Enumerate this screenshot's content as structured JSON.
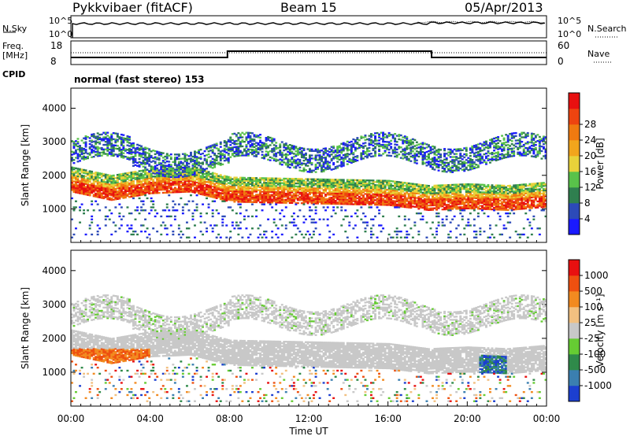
{
  "header": {
    "title": "Pykkvibaer (fitACF)",
    "beam": "Beam 15",
    "date": "05/Apr/2013"
  },
  "noise_panel": {
    "left_label": "N.Sky",
    "right_label": "N.Search",
    "ticks": [
      "10^5",
      "10^0"
    ]
  },
  "freq_panel": {
    "left_label": "Freq.",
    "left_unit": "[MHz]",
    "left_ticks": [
      "18",
      "8"
    ],
    "right_label": "Nave",
    "right_ticks": [
      "60",
      "0"
    ]
  },
  "cpid": {
    "label": "CPID",
    "text": "normal (fast stereo) 153"
  },
  "chart_data": [
    {
      "type": "heatmap",
      "panel": "power",
      "ylabel": "Slant Range [km]",
      "ylim": [
        0,
        4600
      ],
      "yticks": [
        "1000",
        "2000",
        "3000",
        "4000"
      ],
      "xlim_hours": [
        0,
        24
      ],
      "colorbar": {
        "label": "Power [dB]",
        "ticks": [
          "4",
          "8",
          "12",
          "16",
          "20",
          "24",
          "28"
        ],
        "colors": [
          "#1a1aff",
          "#2c4ab8",
          "#2f7f4f",
          "#59c24a",
          "#e8d23a",
          "#f2a51c",
          "#f07a10",
          "#ee4410",
          "#e81010"
        ]
      },
      "bands": [
        {
          "name": "main-echo",
          "points": [
            [
              0,
              1700
            ],
            [
              2,
              1450
            ],
            [
              4,
              1650
            ],
            [
              6,
              1700
            ],
            [
              8,
              1400
            ],
            [
              12,
              1350
            ],
            [
              16,
              1300
            ],
            [
              18,
              1150
            ],
            [
              20,
              1200
            ],
            [
              22,
              1150
            ],
            [
              24,
              1250
            ]
          ]
        }
      ]
    },
    {
      "type": "heatmap",
      "panel": "velocity",
      "ylabel": "Slant Range [km]",
      "ylim": [
        0,
        4600
      ],
      "yticks": [
        "1000",
        "2000",
        "3000",
        "4000"
      ],
      "colorbar": {
        "label": "Velocity [m s⁻¹]",
        "ticks": [
          "1000",
          "500",
          "100",
          "25",
          "-25",
          "-100",
          "-500",
          "-1000"
        ],
        "colors": [
          "#1c3fd0",
          "#3b7fb0",
          "#2f8a4a",
          "#66cc33",
          "#c8c8c8",
          "#f2c080",
          "#f28a20",
          "#ee5010",
          "#e81010"
        ]
      }
    }
  ],
  "xaxis": {
    "ticks": [
      "00:00",
      "04:00",
      "08:00",
      "12:00",
      "16:00",
      "20:00",
      "00:00"
    ],
    "label": "Time UT"
  }
}
